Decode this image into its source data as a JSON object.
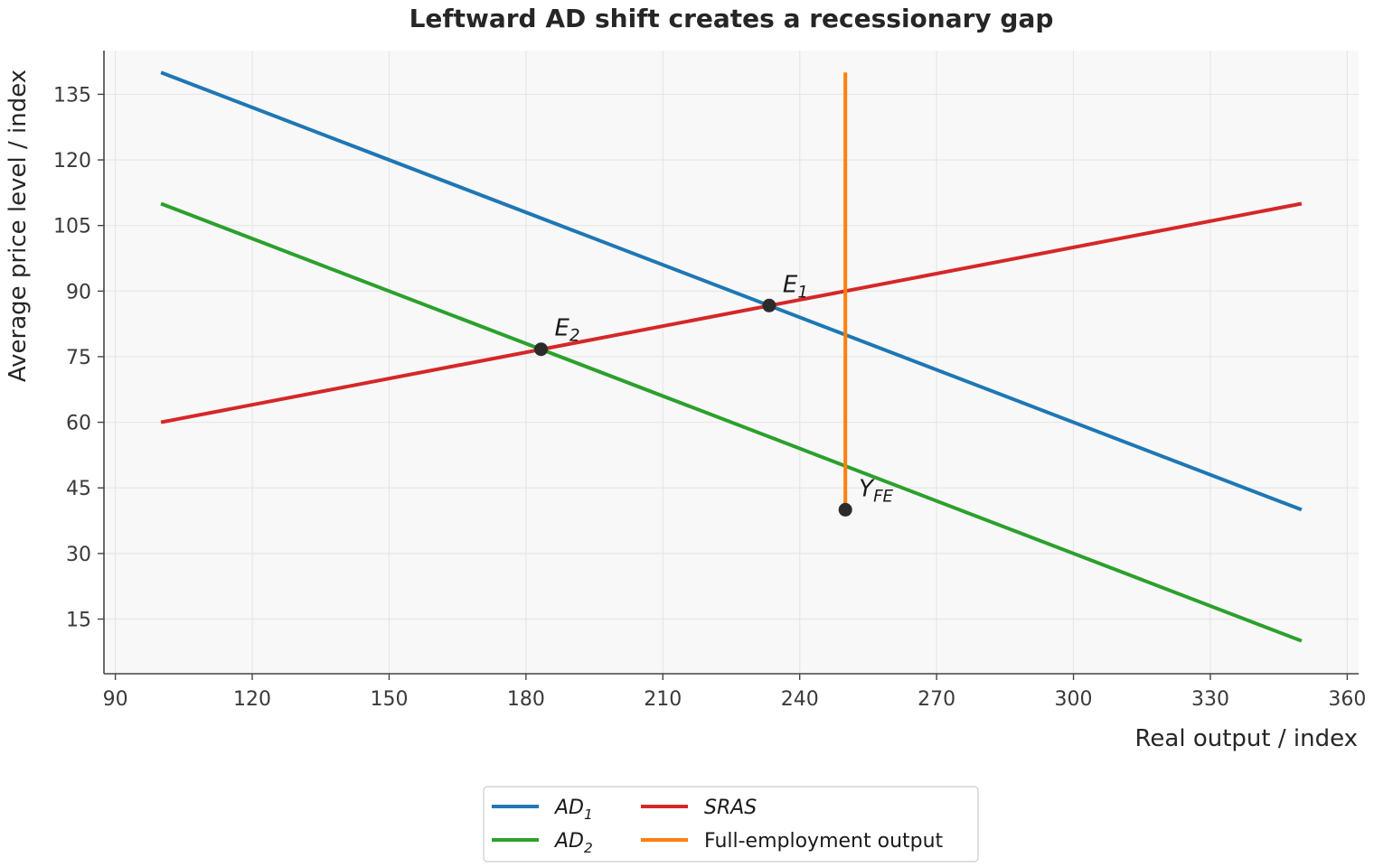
{
  "chart_data": {
    "type": "line",
    "title": "Leftward AD shift creates a recessionary gap",
    "xlabel": "Real output / index",
    "ylabel": "Average price level / index",
    "xlim": [
      87.5,
      362.5
    ],
    "ylim": [
      2.5,
      145
    ],
    "xticks": [
      90,
      120,
      150,
      180,
      210,
      240,
      270,
      300,
      330,
      360
    ],
    "yticks": [
      15,
      30,
      45,
      60,
      75,
      90,
      105,
      120,
      135
    ],
    "grid": true,
    "legend_position": "bottom-center",
    "series": [
      {
        "name": "AD",
        "sub": "1",
        "italic": true,
        "color": "#1f77b4",
        "x": [
          100,
          350
        ],
        "y": [
          140,
          40
        ]
      },
      {
        "name": "AD",
        "sub": "2",
        "italic": true,
        "color": "#2ca02c",
        "x": [
          100,
          350
        ],
        "y": [
          110,
          10
        ]
      },
      {
        "name": "SRAS",
        "sub": "",
        "italic": true,
        "color": "#d62728",
        "x": [
          100,
          350
        ],
        "y": [
          60,
          110
        ]
      },
      {
        "name": "Full-employment output",
        "sub": "",
        "italic": false,
        "color": "#ff7f0e",
        "x": [
          250,
          250
        ],
        "y": [
          40,
          140
        ]
      }
    ],
    "points": [
      {
        "label": "E",
        "sub": "1",
        "x": 233.3,
        "y": 86.7
      },
      {
        "label": "E",
        "sub": "2",
        "x": 183.3,
        "y": 76.7
      },
      {
        "label": "Y",
        "sub": "FE",
        "x": 250,
        "y": 40
      }
    ]
  }
}
